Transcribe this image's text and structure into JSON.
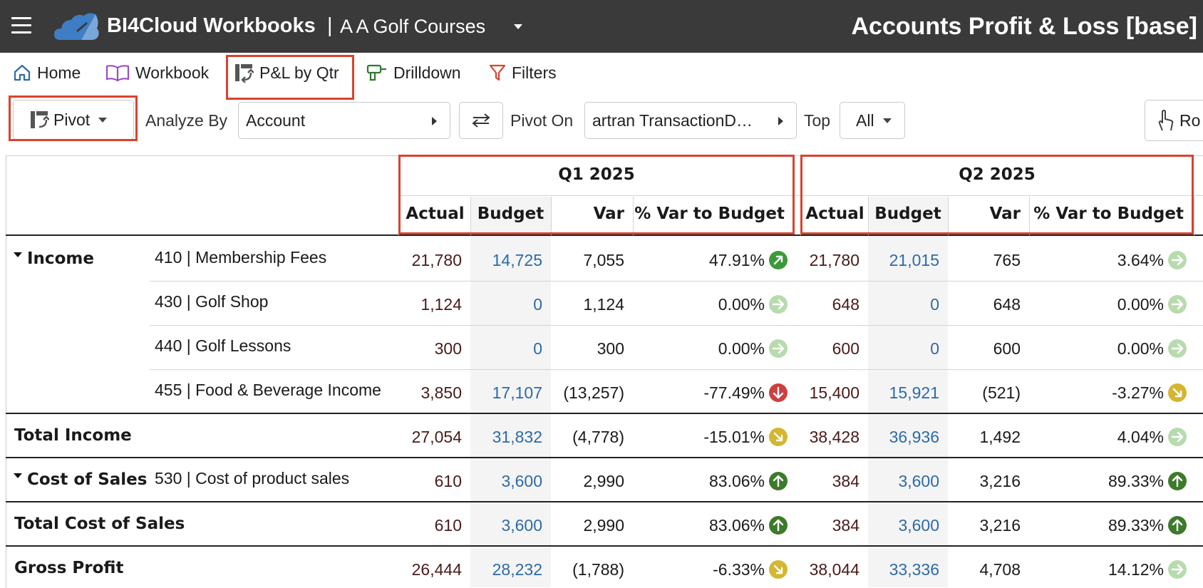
{
  "header": {
    "app_title": "BI4Cloud Workbooks",
    "separator": "|",
    "company": "A A Golf Courses",
    "report_title": "Accounts Profit & Loss [base]"
  },
  "nav": {
    "items": [
      {
        "label": "Home",
        "icon": "home-icon"
      },
      {
        "label": "Workbook",
        "icon": "book-icon"
      },
      {
        "label": "P&L by Qtr",
        "icon": "pivot-icon"
      },
      {
        "label": "Drilldown",
        "icon": "drill-icon"
      },
      {
        "label": "Filters",
        "icon": "filter-icon"
      }
    ]
  },
  "toolbar": {
    "pivot_label": "Pivot",
    "analyze_by_label": "Analyze By",
    "analyze_by_value": "Account",
    "pivot_on_label": "Pivot On",
    "pivot_on_value": "artran TransactionD…",
    "top_label": "Top",
    "top_value": "All",
    "rows_button_partial": "Ro"
  },
  "colors": {
    "accent_red": "#d9432f",
    "topbar_bg": "#3a3a3a",
    "budget_blue": "#2d6aa8",
    "up_green": "#3d7a2a",
    "up_light": "#b8dbae",
    "neutral": "#d4b631",
    "down_red": "#cc4040"
  },
  "table": {
    "quarters": [
      "Q1 2025",
      "Q2 2025"
    ],
    "columns": [
      "Actual",
      "Budget",
      "Var",
      "% Var to Budget"
    ],
    "rows": [
      {
        "group": "Income",
        "account": "410 | Membership Fees",
        "q1": [
          "21,780",
          "14,725",
          "7,055",
          "47.91%"
        ],
        "q1_icon": "up-right",
        "q2": [
          "21,780",
          "21,015",
          "765",
          "3.64%"
        ],
        "q2_icon": "right-light"
      },
      {
        "group": "",
        "account": "430 | Golf Shop",
        "q1": [
          "1,124",
          "0",
          "1,124",
          "0.00%"
        ],
        "q1_icon": "right-light",
        "q2": [
          "648",
          "0",
          "648",
          "0.00%"
        ],
        "q2_icon": "right-light"
      },
      {
        "group": "",
        "account": "440 | Golf Lessons",
        "q1": [
          "300",
          "0",
          "300",
          "0.00%"
        ],
        "q1_icon": "right-light",
        "q2": [
          "600",
          "0",
          "600",
          "0.00%"
        ],
        "q2_icon": "right-light"
      },
      {
        "group": "",
        "account": "455 | Food & Beverage Income",
        "q1": [
          "3,850",
          "17,107",
          "(13,257)",
          "-77.49%"
        ],
        "q1_icon": "down",
        "q2": [
          "15,400",
          "15,921",
          "(521)",
          "-3.27%"
        ],
        "q2_icon": "down-right"
      },
      {
        "group": "Total Income",
        "account": "",
        "q1": [
          "27,054",
          "31,832",
          "(4,778)",
          "-15.01%"
        ],
        "q1_icon": "down-right",
        "q2": [
          "38,428",
          "36,936",
          "1,492",
          "4.04%"
        ],
        "q2_icon": "right-light"
      },
      {
        "group": "Cost of Sales",
        "account": "530 | Cost of product sales",
        "q1": [
          "610",
          "3,600",
          "2,990",
          "83.06%"
        ],
        "q1_icon": "up",
        "q2": [
          "384",
          "3,600",
          "3,216",
          "89.33%"
        ],
        "q2_icon": "up"
      },
      {
        "group": "Total Cost of Sales",
        "account": "",
        "q1": [
          "610",
          "3,600",
          "2,990",
          "83.06%"
        ],
        "q1_icon": "up",
        "q2": [
          "384",
          "3,600",
          "3,216",
          "89.33%"
        ],
        "q2_icon": "up"
      },
      {
        "group": "Gross Profit",
        "account": "",
        "q1": [
          "26,444",
          "28,232",
          "(1,788)",
          "-6.33%"
        ],
        "q1_icon": "down-right",
        "q2": [
          "38,044",
          "33,336",
          "4,708",
          "14.12%"
        ],
        "q2_icon": "right-light"
      }
    ]
  }
}
